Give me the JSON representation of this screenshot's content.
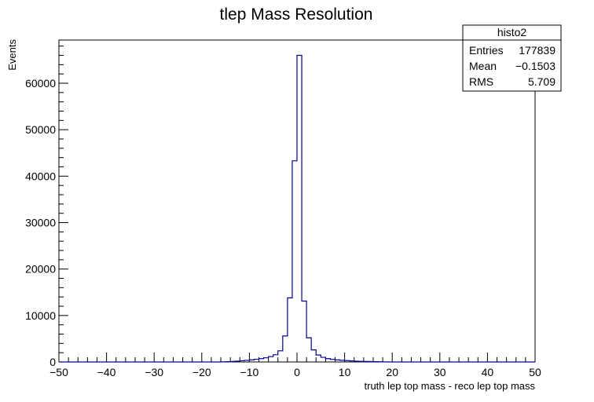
{
  "chart_data": {
    "type": "histogram",
    "title": "tlep Mass Resolution",
    "xlabel": "truth lep top mass - reco lep top mass",
    "ylabel": "Events",
    "xlim": [
      -50,
      50
    ],
    "ylim": [
      0,
      69300
    ],
    "x_ticks": [
      -50,
      -40,
      -30,
      -20,
      -10,
      0,
      10,
      20,
      30,
      40,
      50
    ],
    "x_tick_labels": [
      "−50",
      "−40",
      "−30",
      "−20",
      "−10",
      "0",
      "10",
      "20",
      "30",
      "40",
      "50"
    ],
    "y_ticks": [
      0,
      10000,
      20000,
      30000,
      40000,
      50000,
      60000
    ],
    "y_tick_labels": [
      "0",
      "10000",
      "20000",
      "30000",
      "40000",
      "50000",
      "60000"
    ],
    "bin_width": 1,
    "bin_edges_range": [
      -50,
      50
    ],
    "bins": [
      {
        "x": -16,
        "y": 30
      },
      {
        "x": -15,
        "y": 60
      },
      {
        "x": -14,
        "y": 120
      },
      {
        "x": -13,
        "y": 180
      },
      {
        "x": -12,
        "y": 260
      },
      {
        "x": -11,
        "y": 350
      },
      {
        "x": -10,
        "y": 450
      },
      {
        "x": -9,
        "y": 580
      },
      {
        "x": -8,
        "y": 720
      },
      {
        "x": -7,
        "y": 900
      },
      {
        "x": -6,
        "y": 1150
      },
      {
        "x": -5,
        "y": 1550
      },
      {
        "x": -4,
        "y": 2400
      },
      {
        "x": -3,
        "y": 5600
      },
      {
        "x": -2,
        "y": 13800
      },
      {
        "x": -1,
        "y": 43300
      },
      {
        "x": 0,
        "y": 66000
      },
      {
        "x": 1,
        "y": 13100
      },
      {
        "x": 2,
        "y": 5200
      },
      {
        "x": 3,
        "y": 2600
      },
      {
        "x": 4,
        "y": 1500
      },
      {
        "x": 5,
        "y": 1000
      },
      {
        "x": 6,
        "y": 720
      },
      {
        "x": 7,
        "y": 560
      },
      {
        "x": 8,
        "y": 440
      },
      {
        "x": 9,
        "y": 360
      },
      {
        "x": 10,
        "y": 290
      },
      {
        "x": 11,
        "y": 230
      },
      {
        "x": 12,
        "y": 180
      },
      {
        "x": 13,
        "y": 140
      },
      {
        "x": 14,
        "y": 110
      },
      {
        "x": 15,
        "y": 80
      },
      {
        "x": 16,
        "y": 60
      },
      {
        "x": 17,
        "y": 40
      },
      {
        "x": 18,
        "y": 25
      }
    ],
    "line_color": "#000099",
    "stats": {
      "name": "histo2",
      "rows": [
        {
          "label": "Entries",
          "value": "177839"
        },
        {
          "label": "Mean",
          "value": "−0.1503"
        },
        {
          "label": "RMS",
          "value": "5.709"
        }
      ]
    }
  }
}
